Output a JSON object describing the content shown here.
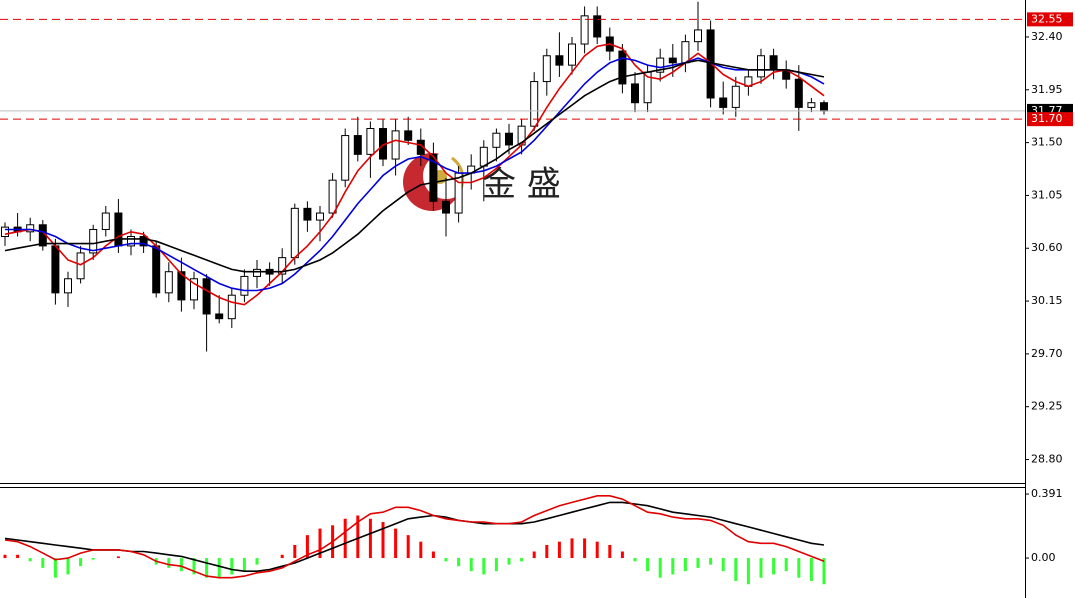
{
  "chart_data": [
    {
      "type": "candlestick",
      "ylim": [
        28.6,
        32.715
      ],
      "yticks": [
        {
          "value": 28.8,
          "label": "28.80"
        },
        {
          "value": 29.25,
          "label": "29.25"
        },
        {
          "value": 29.7,
          "label": "29.70"
        },
        {
          "value": 30.15,
          "label": "30.15"
        },
        {
          "value": 30.6,
          "label": "30.60"
        },
        {
          "value": 31.05,
          "label": "31.05"
        },
        {
          "value": 31.5,
          "label": "31.50"
        },
        {
          "value": 31.95,
          "label": "31.95"
        },
        {
          "value": 32.4,
          "label": "32.40"
        }
      ],
      "up_color": "#ffffff",
      "down_color": "#000000",
      "candles": [
        [
          30.7,
          30.82,
          30.62,
          30.78
        ],
        [
          30.78,
          30.9,
          30.7,
          30.74
        ],
        [
          30.74,
          30.86,
          30.66,
          30.8
        ],
        [
          30.8,
          30.84,
          30.58,
          30.62
        ],
        [
          30.62,
          30.68,
          30.12,
          30.22
        ],
        [
          30.22,
          30.4,
          30.1,
          30.34
        ],
        [
          30.34,
          30.62,
          30.3,
          30.56
        ],
        [
          30.56,
          30.8,
          30.5,
          30.76
        ],
        [
          30.76,
          30.96,
          30.7,
          30.9
        ],
        [
          30.9,
          31.02,
          30.56,
          30.62
        ],
        [
          30.62,
          30.76,
          30.54,
          30.7
        ],
        [
          30.7,
          30.74,
          30.56,
          30.62
        ],
        [
          30.62,
          30.66,
          30.18,
          30.22
        ],
        [
          30.22,
          30.48,
          30.14,
          30.4
        ],
        [
          30.4,
          30.52,
          30.06,
          30.16
        ],
        [
          30.16,
          30.4,
          30.08,
          30.34
        ],
        [
          30.34,
          30.38,
          29.72,
          30.04
        ],
        [
          30.04,
          30.2,
          29.96,
          30.0
        ],
        [
          30.0,
          30.26,
          29.92,
          30.2
        ],
        [
          30.2,
          30.42,
          30.14,
          30.36
        ],
        [
          30.36,
          30.5,
          30.26,
          30.42
        ],
        [
          30.42,
          30.48,
          30.28,
          30.38
        ],
        [
          30.38,
          30.6,
          30.3,
          30.52
        ],
        [
          30.52,
          30.98,
          30.46,
          30.94
        ],
        [
          30.94,
          31.0,
          30.74,
          30.84
        ],
        [
          30.84,
          30.96,
          30.66,
          30.9
        ],
        [
          30.9,
          31.24,
          30.86,
          31.18
        ],
        [
          31.18,
          31.62,
          31.12,
          31.56
        ],
        [
          31.56,
          31.72,
          31.34,
          31.4
        ],
        [
          31.4,
          31.68,
          31.2,
          31.62
        ],
        [
          31.62,
          31.7,
          31.3,
          31.36
        ],
        [
          31.36,
          31.7,
          31.22,
          31.6
        ],
        [
          31.6,
          31.72,
          31.48,
          31.52
        ],
        [
          31.52,
          31.62,
          31.3,
          31.4
        ],
        [
          31.4,
          31.5,
          30.92,
          31.0
        ],
        [
          31.0,
          31.2,
          30.7,
          30.9
        ],
        [
          30.9,
          31.3,
          30.82,
          31.24
        ],
        [
          31.24,
          31.4,
          31.1,
          31.3
        ],
        [
          31.3,
          31.52,
          31.0,
          31.46
        ],
        [
          31.46,
          31.62,
          31.34,
          31.58
        ],
        [
          31.58,
          31.66,
          31.4,
          31.48
        ],
        [
          31.48,
          31.7,
          31.4,
          31.64
        ],
        [
          31.64,
          32.1,
          31.6,
          32.02
        ],
        [
          32.02,
          32.3,
          31.9,
          32.24
        ],
        [
          32.24,
          32.44,
          32.06,
          32.16
        ],
        [
          32.16,
          32.4,
          32.08,
          32.34
        ],
        [
          32.34,
          32.66,
          32.26,
          32.58
        ],
        [
          32.58,
          32.66,
          32.34,
          32.4
        ],
        [
          32.4,
          32.48,
          32.2,
          32.28
        ],
        [
          32.28,
          32.34,
          31.92,
          32.0
        ],
        [
          32.0,
          32.1,
          31.76,
          31.84
        ],
        [
          31.84,
          32.16,
          31.76,
          32.1
        ],
        [
          32.1,
          32.3,
          32.02,
          32.22
        ],
        [
          32.22,
          32.34,
          32.06,
          32.18
        ],
        [
          32.18,
          32.42,
          32.1,
          32.36
        ],
        [
          32.36,
          32.7,
          32.28,
          32.46
        ],
        [
          32.46,
          32.54,
          31.8,
          31.88
        ],
        [
          31.88,
          32.02,
          31.74,
          31.8
        ],
        [
          31.8,
          32.06,
          31.72,
          31.98
        ],
        [
          31.98,
          32.12,
          31.9,
          32.06
        ],
        [
          32.06,
          32.3,
          32.0,
          32.24
        ],
        [
          32.24,
          32.3,
          32.04,
          32.12
        ],
        [
          32.12,
          32.2,
          31.96,
          32.04
        ],
        [
          32.04,
          32.16,
          31.6,
          31.8
        ],
        [
          31.8,
          31.88,
          31.76,
          31.84
        ],
        [
          31.84,
          31.86,
          31.74,
          31.77
        ]
      ],
      "series": [
        {
          "color": "#e00000",
          "values": [
            30.72,
            30.74,
            30.76,
            30.74,
            30.62,
            30.5,
            30.46,
            30.52,
            30.62,
            30.7,
            30.74,
            30.72,
            30.62,
            30.5,
            30.38,
            30.3,
            30.24,
            30.18,
            30.14,
            30.12,
            30.2,
            30.3,
            30.4,
            30.52,
            30.62,
            30.74,
            30.88,
            31.08,
            31.26,
            31.38,
            31.48,
            31.52,
            31.5,
            31.48,
            31.38,
            31.24,
            31.16,
            31.16,
            31.2,
            31.28,
            31.38,
            31.48,
            31.62,
            31.8,
            31.96,
            32.1,
            32.24,
            32.32,
            32.34,
            32.3,
            32.16,
            32.06,
            32.04,
            32.1,
            32.18,
            32.26,
            32.18,
            32.08,
            32.02,
            31.98,
            32.02,
            32.1,
            32.12,
            32.06,
            31.98,
            31.9
          ]
        },
        {
          "color": "#0000dd",
          "values": [
            30.76,
            30.76,
            30.76,
            30.74,
            30.7,
            30.64,
            30.6,
            30.58,
            30.6,
            30.62,
            30.64,
            30.64,
            30.6,
            30.54,
            30.48,
            30.42,
            30.36,
            30.3,
            30.26,
            30.24,
            30.24,
            30.26,
            30.3,
            30.38,
            30.48,
            30.58,
            30.7,
            30.84,
            30.98,
            31.1,
            31.22,
            31.3,
            31.36,
            31.38,
            31.34,
            31.28,
            31.24,
            31.24,
            31.26,
            31.3,
            31.36,
            31.42,
            31.52,
            31.64,
            31.76,
            31.88,
            32.0,
            32.1,
            32.18,
            32.22,
            32.2,
            32.16,
            32.14,
            32.16,
            32.18,
            32.22,
            32.18,
            32.14,
            32.12,
            32.12,
            32.12,
            32.12,
            32.12,
            32.1,
            32.06,
            32.0
          ]
        },
        {
          "color": "#000000",
          "values": [
            30.58,
            30.6,
            30.62,
            30.64,
            30.64,
            30.64,
            30.64,
            30.64,
            30.66,
            30.68,
            30.68,
            30.68,
            30.66,
            30.62,
            30.58,
            30.54,
            30.5,
            30.46,
            30.42,
            30.4,
            30.4,
            30.4,
            30.4,
            30.42,
            30.46,
            30.5,
            30.56,
            30.64,
            30.72,
            30.82,
            30.92,
            31.0,
            31.08,
            31.14,
            31.16,
            31.18,
            31.2,
            31.24,
            31.3,
            31.36,
            31.44,
            31.5,
            31.58,
            31.66,
            31.74,
            31.82,
            31.9,
            31.96,
            32.02,
            32.06,
            32.08,
            32.1,
            32.12,
            32.14,
            32.18,
            32.2,
            32.18,
            32.16,
            32.14,
            32.12,
            32.12,
            32.12,
            32.12,
            32.1,
            32.08,
            32.06
          ]
        }
      ],
      "price_lines": [
        {
          "value": 32.55,
          "label": "32.55",
          "color": "#e00000"
        },
        {
          "value": 31.7,
          "label": "31.70",
          "color": "#e00000"
        }
      ],
      "current_price": {
        "value": 31.77,
        "label": "31.77"
      },
      "watermark": "金 盛"
    },
    {
      "type": "macd",
      "ylim": [
        -0.244,
        0.434
      ],
      "yticks": [
        0.391,
        {
          "value": 0,
          "label": "0.00"
        }
      ],
      "up_color": "#ff0000",
      "down_color": "#33ff33",
      "histogram": [
        0.02,
        0.02,
        -0.02,
        -0.06,
        -0.12,
        -0.1,
        -0.05,
        -0.01,
        0.0,
        0.01,
        0.0,
        0.0,
        -0.04,
        -0.06,
        -0.08,
        -0.1,
        -0.12,
        -0.12,
        -0.1,
        -0.08,
        -0.04,
        0.0,
        0.02,
        0.08,
        0.14,
        0.18,
        0.2,
        0.24,
        0.26,
        0.24,
        0.22,
        0.18,
        0.14,
        0.1,
        0.04,
        -0.02,
        -0.05,
        -0.08,
        -0.1,
        -0.08,
        -0.04,
        -0.02,
        0.04,
        0.08,
        0.1,
        0.12,
        0.12,
        0.1,
        0.08,
        0.04,
        -0.02,
        -0.08,
        -0.12,
        -0.1,
        -0.08,
        -0.06,
        -0.04,
        -0.08,
        -0.14,
        -0.16,
        -0.12,
        -0.1,
        -0.08,
        -0.12,
        -0.14,
        -0.16
      ],
      "series": [
        {
          "color": "#000000",
          "values": [
            0.12,
            0.11,
            0.1,
            0.09,
            0.08,
            0.07,
            0.06,
            0.05,
            0.05,
            0.05,
            0.04,
            0.04,
            0.03,
            0.02,
            0.01,
            -0.01,
            -0.03,
            -0.05,
            -0.07,
            -0.08,
            -0.08,
            -0.07,
            -0.05,
            -0.03,
            0.0,
            0.03,
            0.06,
            0.09,
            0.12,
            0.15,
            0.18,
            0.21,
            0.24,
            0.25,
            0.26,
            0.25,
            0.23,
            0.22,
            0.21,
            0.21,
            0.21,
            0.21,
            0.22,
            0.24,
            0.26,
            0.28,
            0.3,
            0.32,
            0.34,
            0.34,
            0.33,
            0.32,
            0.3,
            0.28,
            0.27,
            0.26,
            0.25,
            0.23,
            0.21,
            0.19,
            0.17,
            0.15,
            0.13,
            0.11,
            0.09,
            0.08
          ]
        },
        {
          "color": "#e00000",
          "values": [
            0.11,
            0.1,
            0.07,
            0.03,
            -0.01,
            0.0,
            0.03,
            0.05,
            0.05,
            0.05,
            0.04,
            0.02,
            -0.02,
            -0.04,
            -0.05,
            -0.08,
            -0.11,
            -0.12,
            -0.12,
            -0.11,
            -0.09,
            -0.08,
            -0.06,
            -0.02,
            0.02,
            0.05,
            0.1,
            0.16,
            0.22,
            0.27,
            0.28,
            0.31,
            0.31,
            0.29,
            0.26,
            0.24,
            0.23,
            0.22,
            0.22,
            0.21,
            0.21,
            0.22,
            0.26,
            0.29,
            0.32,
            0.34,
            0.36,
            0.38,
            0.38,
            0.36,
            0.32,
            0.28,
            0.27,
            0.25,
            0.24,
            0.24,
            0.23,
            0.2,
            0.14,
            0.1,
            0.09,
            0.09,
            0.07,
            0.04,
            0.01,
            -0.02
          ]
        }
      ]
    }
  ]
}
